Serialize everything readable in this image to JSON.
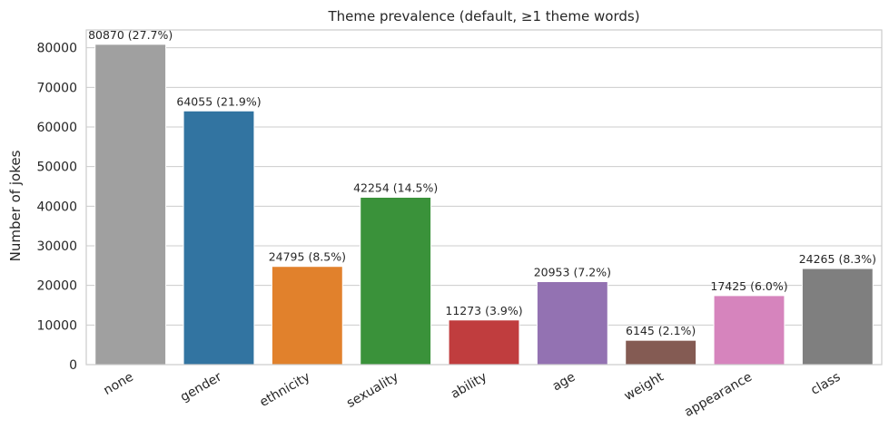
{
  "chart_data": {
    "type": "bar",
    "title": "Theme prevalence (default, ≥1 theme words)",
    "xlabel": "",
    "ylabel": "Number of jokes",
    "ylim": [
      0,
      84500
    ],
    "yticks": [
      0,
      10000,
      20000,
      30000,
      40000,
      50000,
      60000,
      70000,
      80000
    ],
    "grid": true,
    "categories": [
      "none",
      "gender",
      "ethnicity",
      "sexuality",
      "ability",
      "age",
      "weight",
      "appearance",
      "class"
    ],
    "values": [
      80870,
      64055,
      24795,
      42254,
      11273,
      20953,
      6145,
      17425,
      24265
    ],
    "labels": [
      "80870 (27.7%)",
      "64055 (21.9%)",
      "24795 (8.5%)",
      "42254 (14.5%)",
      "11273 (3.9%)",
      "20953 (7.2%)",
      "6145 (2.1%)",
      "17425 (6.0%)",
      "24265 (8.3%)"
    ],
    "colors": [
      "#a0a0a0",
      "#3274a1",
      "#e1812c",
      "#3a923a",
      "#c03d3e",
      "#9372b2",
      "#845b53",
      "#d684bd",
      "#7f7f7f"
    ]
  }
}
